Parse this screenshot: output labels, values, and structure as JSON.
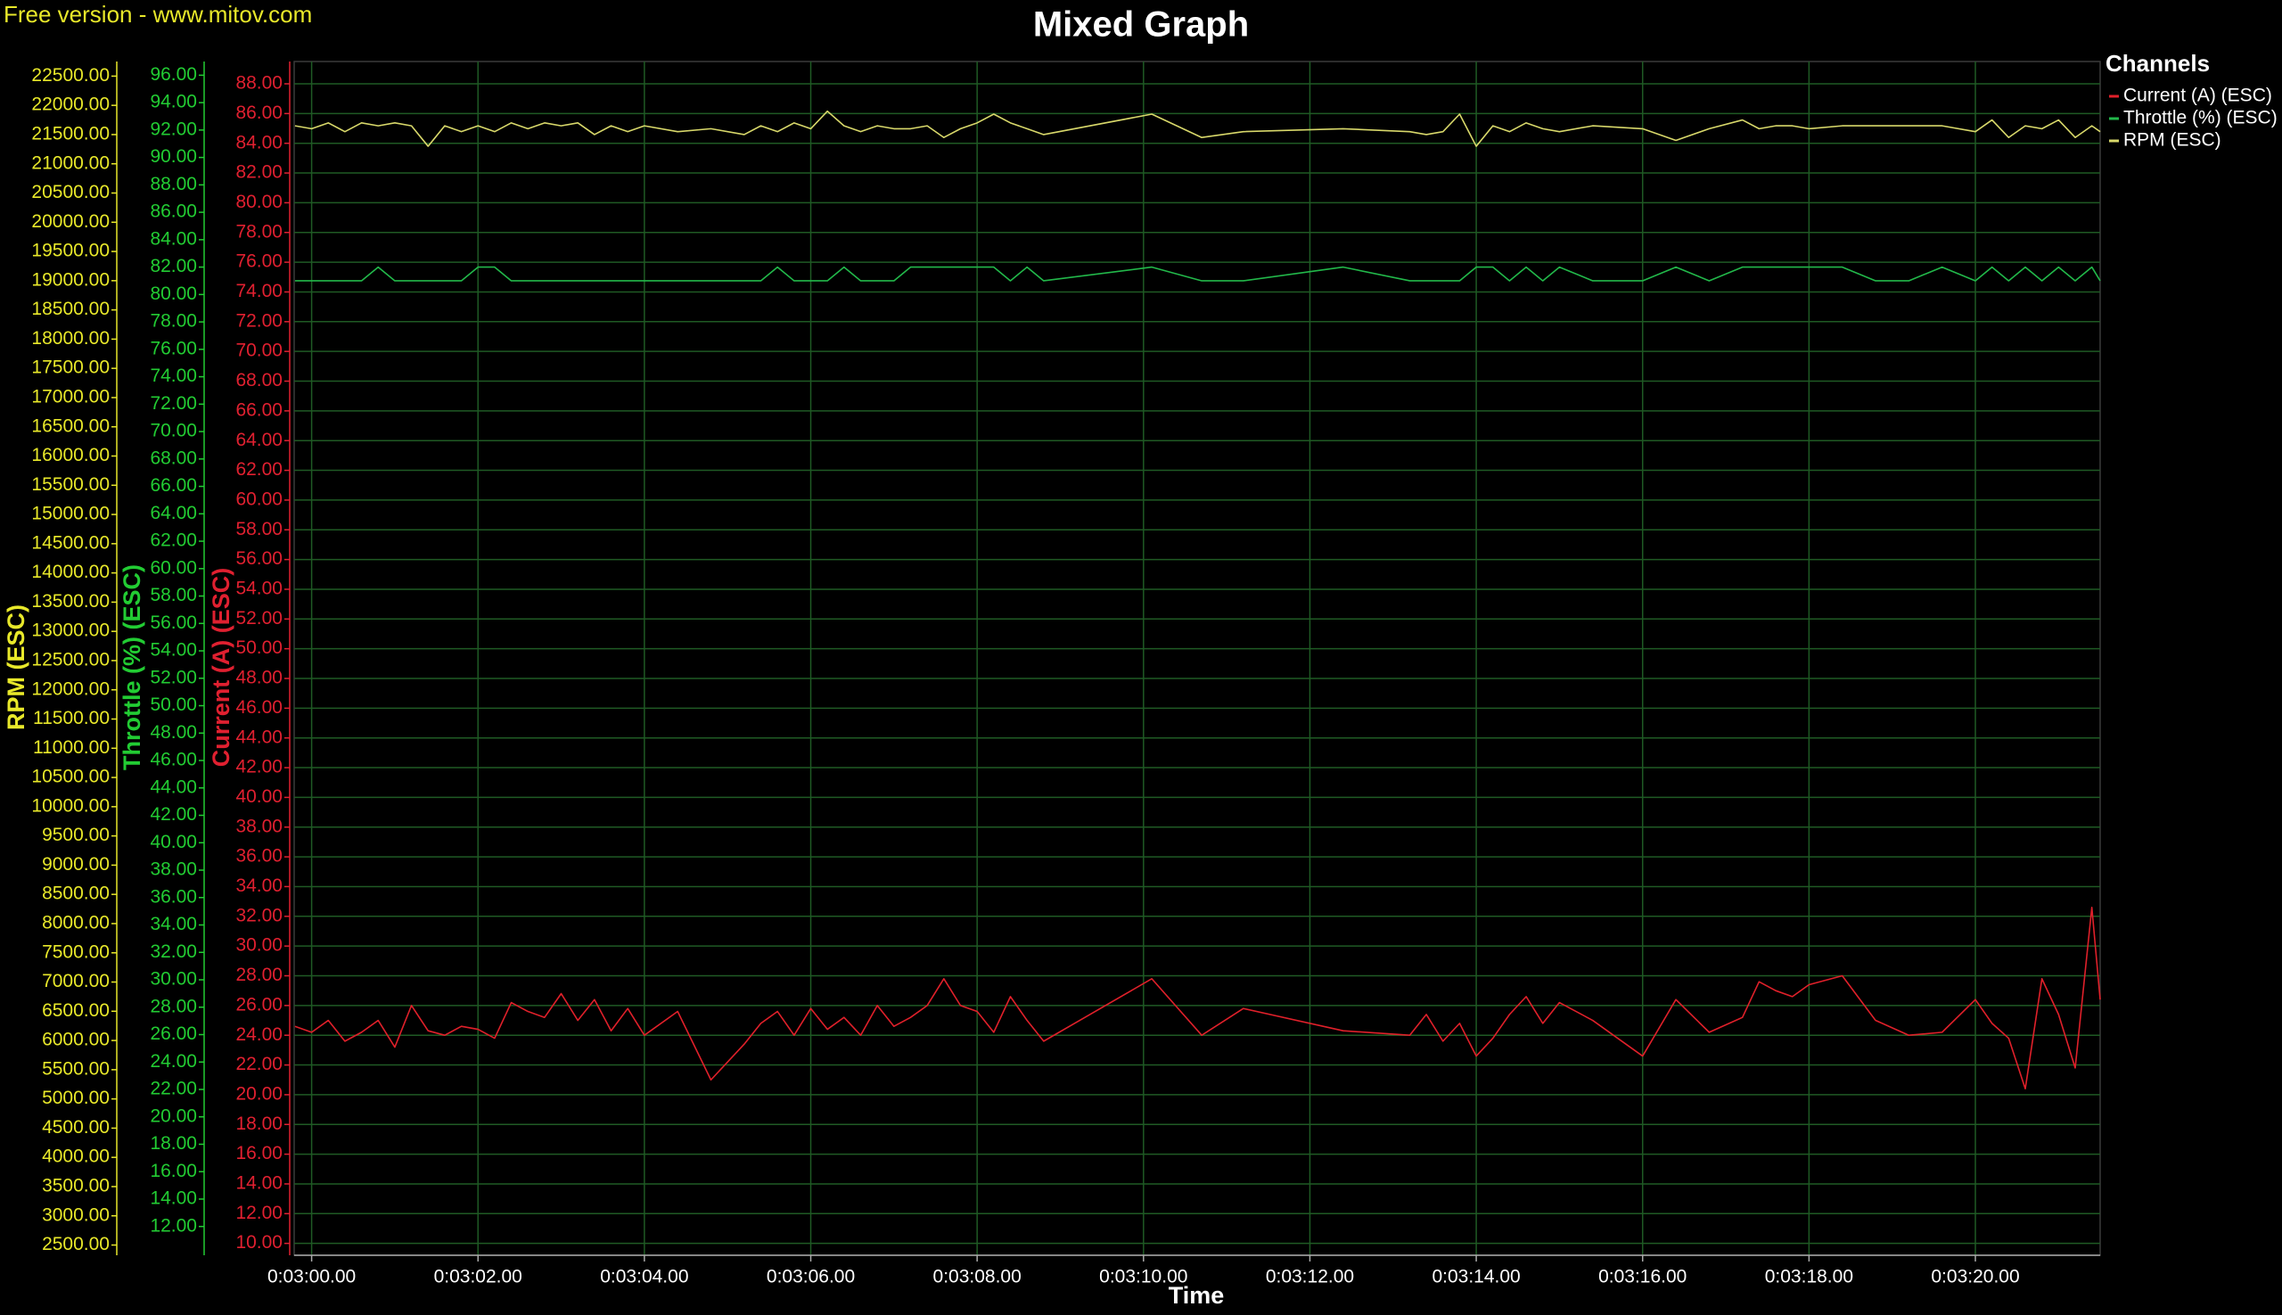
{
  "chart_data": {
    "type": "line",
    "watermark": "Free version - www.mitov.com",
    "title": "Mixed Graph",
    "x_label": "Time",
    "legend_title": "Channels",
    "legend": "top-right",
    "grid": true,
    "xlim": [
      179.79,
      201.5
    ],
    "xticks": [
      {
        "value": 180,
        "label": "0:03:00.00"
      },
      {
        "value": 182,
        "label": "0:03:02.00"
      },
      {
        "value": 184,
        "label": "0:03:04.00"
      },
      {
        "value": 186,
        "label": "0:03:06.00"
      },
      {
        "value": 188,
        "label": "0:03:08.00"
      },
      {
        "value": 190,
        "label": "0:03:10.00"
      },
      {
        "value": 192,
        "label": "0:03:12.00"
      },
      {
        "value": 194,
        "label": "0:03:14.00"
      },
      {
        "value": 196,
        "label": "0:03:16.00"
      },
      {
        "value": 198,
        "label": "0:03:18.00"
      },
      {
        "value": 200,
        "label": "0:03:20.00"
      }
    ],
    "y_axes": [
      {
        "title": "RPM (ESC)",
        "color": "#e8e82a",
        "ylim": [
          2325,
          22750
        ],
        "yticks": [
          {
            "value": 2500,
            "label": "2500.00"
          },
          {
            "value": 3000,
            "label": "3000.00"
          },
          {
            "value": 3500,
            "label": "3500.00"
          },
          {
            "value": 4000,
            "label": "4000.00"
          },
          {
            "value": 4500,
            "label": "4500.00"
          },
          {
            "value": 5000,
            "label": "5000.00"
          },
          {
            "value": 5500,
            "label": "5500.00"
          },
          {
            "value": 6000,
            "label": "6000.00"
          },
          {
            "value": 6500,
            "label": "6500.00"
          },
          {
            "value": 7000,
            "label": "7000.00"
          },
          {
            "value": 7500,
            "label": "7500.00"
          },
          {
            "value": 8000,
            "label": "8000.00"
          },
          {
            "value": 8500,
            "label": "8500.00"
          },
          {
            "value": 9000,
            "label": "9000.00"
          },
          {
            "value": 9500,
            "label": "9500.00"
          },
          {
            "value": 10000,
            "label": "10000.00"
          },
          {
            "value": 10500,
            "label": "10500.00"
          },
          {
            "value": 11000,
            "label": "11000.00"
          },
          {
            "value": 11500,
            "label": "11500.00"
          },
          {
            "value": 12000,
            "label": "12000.00"
          },
          {
            "value": 12500,
            "label": "12500.00"
          },
          {
            "value": 13000,
            "label": "13000.00"
          },
          {
            "value": 13500,
            "label": "13500.00"
          },
          {
            "value": 14000,
            "label": "14000.00"
          },
          {
            "value": 14500,
            "label": "14500.00"
          },
          {
            "value": 15000,
            "label": "15000.00"
          },
          {
            "value": 15500,
            "label": "15500.00"
          },
          {
            "value": 16000,
            "label": "16000.00"
          },
          {
            "value": 16500,
            "label": "16500.00"
          },
          {
            "value": 17000,
            "label": "17000.00"
          },
          {
            "value": 17500,
            "label": "17500.00"
          },
          {
            "value": 18000,
            "label": "18000.00"
          },
          {
            "value": 18500,
            "label": "18500.00"
          },
          {
            "value": 19000,
            "label": "19000.00"
          },
          {
            "value": 19500,
            "label": "19500.00"
          },
          {
            "value": 20000,
            "label": "20000.00"
          },
          {
            "value": 20500,
            "label": "20500.00"
          },
          {
            "value": 21000,
            "label": "21000.00"
          },
          {
            "value": 21500,
            "label": "21500.00"
          },
          {
            "value": 22000,
            "label": "22000.00"
          },
          {
            "value": 22500,
            "label": "22500.00"
          }
        ]
      },
      {
        "title": "Throttle (%) (ESC)",
        "color": "#22cc33",
        "ylim": [
          9.9,
          97
        ],
        "yticks": [
          {
            "value": 12,
            "label": "12.00"
          },
          {
            "value": 14,
            "label": "14.00"
          },
          {
            "value": 16,
            "label": "16.00"
          },
          {
            "value": 18,
            "label": "18.00"
          },
          {
            "value": 20,
            "label": "20.00"
          },
          {
            "value": 22,
            "label": "22.00"
          },
          {
            "value": 24,
            "label": "24.00"
          },
          {
            "value": 26,
            "label": "26.00"
          },
          {
            "value": 28,
            "label": "28.00"
          },
          {
            "value": 30,
            "label": "30.00"
          },
          {
            "value": 32,
            "label": "32.00"
          },
          {
            "value": 34,
            "label": "34.00"
          },
          {
            "value": 36,
            "label": "36.00"
          },
          {
            "value": 38,
            "label": "38.00"
          },
          {
            "value": 40,
            "label": "40.00"
          },
          {
            "value": 42,
            "label": "42.00"
          },
          {
            "value": 44,
            "label": "44.00"
          },
          {
            "value": 46,
            "label": "46.00"
          },
          {
            "value": 48,
            "label": "48.00"
          },
          {
            "value": 50,
            "label": "50.00"
          },
          {
            "value": 52,
            "label": "52.00"
          },
          {
            "value": 54,
            "label": "54.00"
          },
          {
            "value": 56,
            "label": "56.00"
          },
          {
            "value": 58,
            "label": "58.00"
          },
          {
            "value": 60,
            "label": "60.00"
          },
          {
            "value": 62,
            "label": "62.00"
          },
          {
            "value": 64,
            "label": "64.00"
          },
          {
            "value": 66,
            "label": "66.00"
          },
          {
            "value": 68,
            "label": "68.00"
          },
          {
            "value": 70,
            "label": "70.00"
          },
          {
            "value": 72,
            "label": "72.00"
          },
          {
            "value": 74,
            "label": "74.00"
          },
          {
            "value": 76,
            "label": "76.00"
          },
          {
            "value": 78,
            "label": "78.00"
          },
          {
            "value": 80,
            "label": "80.00"
          },
          {
            "value": 82,
            "label": "82.00"
          },
          {
            "value": 84,
            "label": "84.00"
          },
          {
            "value": 86,
            "label": "86.00"
          },
          {
            "value": 88,
            "label": "88.00"
          },
          {
            "value": 90,
            "label": "90.00"
          },
          {
            "value": 92,
            "label": "92.00"
          },
          {
            "value": 94,
            "label": "94.00"
          },
          {
            "value": 96,
            "label": "96.00"
          }
        ]
      },
      {
        "title": "Current (A) (ESC)",
        "color": "#e02030",
        "ylim": [
          9.2,
          89.5
        ],
        "yticks": [
          {
            "value": 10,
            "label": "10.00"
          },
          {
            "value": 12,
            "label": "12.00"
          },
          {
            "value": 14,
            "label": "14.00"
          },
          {
            "value": 16,
            "label": "16.00"
          },
          {
            "value": 18,
            "label": "18.00"
          },
          {
            "value": 20,
            "label": "20.00"
          },
          {
            "value": 22,
            "label": "22.00"
          },
          {
            "value": 24,
            "label": "24.00"
          },
          {
            "value": 26,
            "label": "26.00"
          },
          {
            "value": 28,
            "label": "28.00"
          },
          {
            "value": 30,
            "label": "30.00"
          },
          {
            "value": 32,
            "label": "32.00"
          },
          {
            "value": 34,
            "label": "34.00"
          },
          {
            "value": 36,
            "label": "36.00"
          },
          {
            "value": 38,
            "label": "38.00"
          },
          {
            "value": 40,
            "label": "40.00"
          },
          {
            "value": 42,
            "label": "42.00"
          },
          {
            "value": 44,
            "label": "44.00"
          },
          {
            "value": 46,
            "label": "46.00"
          },
          {
            "value": 48,
            "label": "48.00"
          },
          {
            "value": 50,
            "label": "50.00"
          },
          {
            "value": 52,
            "label": "52.00"
          },
          {
            "value": 54,
            "label": "54.00"
          },
          {
            "value": 56,
            "label": "56.00"
          },
          {
            "value": 58,
            "label": "58.00"
          },
          {
            "value": 60,
            "label": "60.00"
          },
          {
            "value": 62,
            "label": "62.00"
          },
          {
            "value": 64,
            "label": "64.00"
          },
          {
            "value": 66,
            "label": "66.00"
          },
          {
            "value": 68,
            "label": "68.00"
          },
          {
            "value": 70,
            "label": "70.00"
          },
          {
            "value": 72,
            "label": "72.00"
          },
          {
            "value": 74,
            "label": "74.00"
          },
          {
            "value": 76,
            "label": "76.00"
          },
          {
            "value": 78,
            "label": "78.00"
          },
          {
            "value": 80,
            "label": "80.00"
          },
          {
            "value": 82,
            "label": "82.00"
          },
          {
            "value": 84,
            "label": "84.00"
          },
          {
            "value": 86,
            "label": "86.00"
          },
          {
            "value": 88,
            "label": "88.00"
          }
        ]
      }
    ],
    "x": [
      179.8,
      180.0,
      180.2,
      180.4,
      180.6,
      180.8,
      181.0,
      181.2,
      181.4,
      181.6,
      181.8,
      182.0,
      182.2,
      182.4,
      182.6,
      182.8,
      183.0,
      183.2,
      183.4,
      183.6,
      183.8,
      184.0,
      184.4,
      184.8,
      185.2,
      185.4,
      185.6,
      185.8,
      186.0,
      186.2,
      186.4,
      186.6,
      186.8,
      187.0,
      187.2,
      187.4,
      187.6,
      187.8,
      188.0,
      188.2,
      188.4,
      188.6,
      188.8,
      190.1,
      190.7,
      191.2,
      192.4,
      193.2,
      193.4,
      193.6,
      193.8,
      194.0,
      194.2,
      194.4,
      194.6,
      194.8,
      195.0,
      195.4,
      196.0,
      196.4,
      196.8,
      197.2,
      197.4,
      197.6,
      197.8,
      198.0,
      198.4,
      198.8,
      199.2,
      199.6,
      200.0,
      200.2,
      200.4,
      200.6,
      200.8,
      201.0,
      201.2,
      201.4,
      201.5
    ],
    "series": [
      {
        "name": "Current (A) (ESC)",
        "color": "#e0202a",
        "axis": 2,
        "values": [
          24.6,
          24.2,
          25.0,
          23.6,
          24.2,
          25.0,
          23.2,
          26.0,
          24.3,
          24.0,
          24.6,
          24.4,
          23.8,
          26.2,
          25.6,
          25.2,
          26.8,
          25.0,
          26.4,
          24.3,
          25.8,
          24.0,
          25.6,
          21.0,
          23.4,
          24.8,
          25.6,
          24.0,
          25.8,
          24.4,
          25.2,
          24.0,
          26.0,
          24.6,
          25.2,
          26.0,
          27.8,
          26.0,
          25.6,
          24.2,
          26.6,
          25.0,
          23.6,
          27.8,
          24.0,
          25.8,
          24.3,
          24.0,
          25.4,
          23.6,
          24.8,
          22.6,
          23.8,
          25.4,
          26.6,
          24.8,
          26.2,
          25.0,
          22.6,
          26.4,
          24.2,
          25.2,
          27.6,
          27.0,
          26.6,
          27.4,
          28.0,
          25.0,
          24.0,
          24.2,
          26.4,
          24.8,
          23.8,
          20.4,
          27.8,
          25.4,
          21.8,
          32.6,
          26.4
        ]
      },
      {
        "name": "Throttle (%) (ESC)",
        "color": "#22b84a",
        "axis": 1,
        "values": [
          81,
          81,
          81,
          81,
          81,
          82,
          81,
          81,
          81,
          81,
          81,
          82,
          82,
          81,
          81,
          81,
          81,
          81,
          81,
          81,
          81,
          81,
          81,
          81,
          81,
          81,
          82,
          81,
          81,
          81,
          82,
          81,
          81,
          81,
          82,
          82,
          82,
          82,
          82,
          82,
          81,
          82,
          81,
          82,
          81,
          81,
          82,
          81,
          81,
          81,
          81,
          82,
          82,
          81,
          82,
          81,
          82,
          81,
          81,
          82,
          81,
          82,
          82,
          82,
          82,
          82,
          82,
          81,
          81,
          82,
          81,
          82,
          81,
          82,
          81,
          82,
          81,
          82,
          81
        ]
      },
      {
        "name": "RPM (ESC)",
        "color": "#d8d86a",
        "axis": 0,
        "values": [
          21650,
          21600,
          21700,
          21550,
          21700,
          21650,
          21700,
          21650,
          21300,
          21650,
          21550,
          21650,
          21550,
          21700,
          21600,
          21700,
          21650,
          21700,
          21500,
          21650,
          21550,
          21650,
          21550,
          21600,
          21500,
          21650,
          21550,
          21700,
          21600,
          21900,
          21650,
          21550,
          21650,
          21600,
          21600,
          21650,
          21450,
          21600,
          21700,
          21850,
          21700,
          21600,
          21500,
          21850,
          21450,
          21550,
          21600,
          21550,
          21500,
          21550,
          21850,
          21300,
          21650,
          21550,
          21700,
          21600,
          21550,
          21650,
          21600,
          21400,
          21600,
          21750,
          21600,
          21650,
          21650,
          21600,
          21650,
          21650,
          21650,
          21650,
          21550,
          21750,
          21450,
          21650,
          21600,
          21750,
          21450,
          21650,
          21550
        ]
      }
    ]
  }
}
